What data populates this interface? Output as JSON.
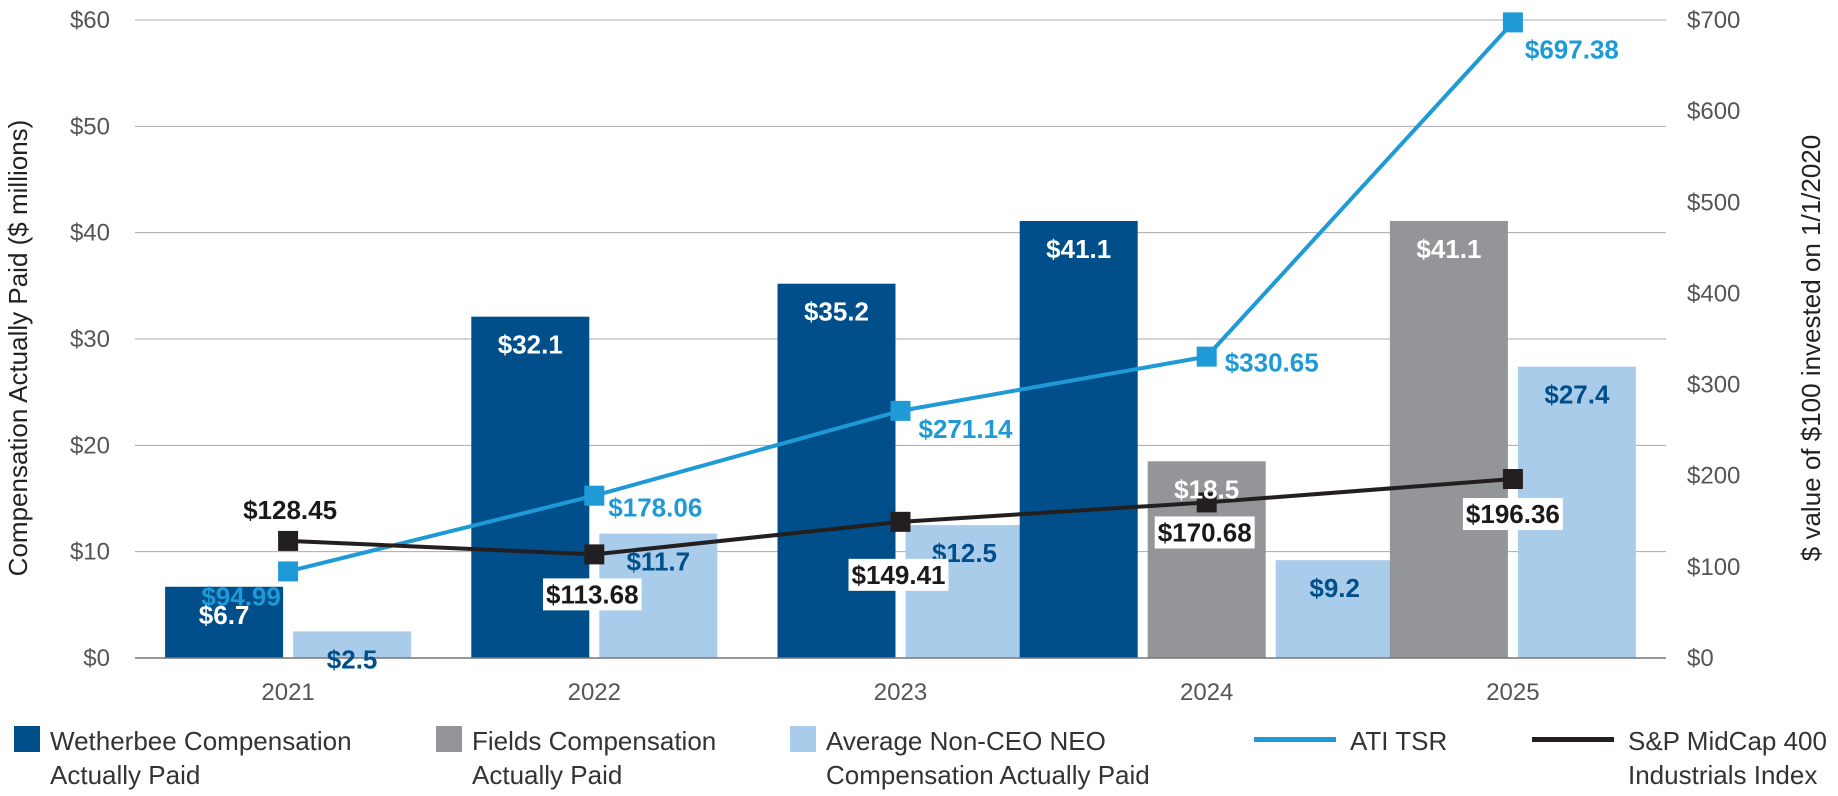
{
  "chart_data": {
    "type": "bar",
    "categories": [
      "2021",
      "2022",
      "2023",
      "2024",
      "2025"
    ],
    "left_axis": {
      "title": "Compensation Actually Paid ($ millions)",
      "range": [
        0,
        60
      ],
      "ticks": [
        0,
        10,
        20,
        30,
        40,
        50,
        60
      ],
      "tick_labels": [
        "$0",
        "$10",
        "$20",
        "$30",
        "$40",
        "$50",
        "$60"
      ]
    },
    "right_axis": {
      "title": "$ value of $100 invested on 1/1/2020",
      "range": [
        0,
        700
      ],
      "ticks": [
        0,
        100,
        200,
        300,
        400,
        500,
        600,
        700
      ],
      "tick_labels": [
        "$0",
        "$100",
        "$200",
        "$300",
        "$400",
        "$500",
        "$600",
        "$700"
      ]
    },
    "grid": true,
    "legend_position": "bottom",
    "series": [
      {
        "name": "Wetherbee Compensation Actually Paid",
        "kind": "bar",
        "axis": "left",
        "color": "#004F8B",
        "values": [
          6.7,
          32.1,
          35.2,
          41.1,
          null
        ],
        "labels": [
          "$6.7",
          "$32.1",
          "$35.2",
          "$41.1",
          null
        ]
      },
      {
        "name": "Fields Compensation Actually Paid",
        "kind": "bar",
        "axis": "left",
        "color": "#939598",
        "values": [
          null,
          null,
          null,
          18.5,
          41.1
        ],
        "labels": [
          null,
          null,
          null,
          "$18.5",
          "$41.1"
        ]
      },
      {
        "name": "Average Non-CEO NEO Compensation Actually Paid",
        "kind": "bar",
        "axis": "left",
        "color": "#A9CCEA",
        "values": [
          2.5,
          11.7,
          12.5,
          9.2,
          27.4
        ],
        "labels": [
          "$2.5",
          "$11.7",
          "$12.5",
          "$9.2",
          "$27.4"
        ]
      },
      {
        "name": "ATI TSR",
        "kind": "line",
        "axis": "right",
        "color": "#1E9AD6",
        "values": [
          94.99,
          178.06,
          271.14,
          330.65,
          697.38
        ],
        "labels": [
          "$94.99",
          "$178.06",
          "$271.14",
          "$330.65",
          "$697.38"
        ]
      },
      {
        "name": "S&P MidCap 400 Industrials Index",
        "kind": "line",
        "axis": "right",
        "color": "#231F20",
        "values": [
          128.45,
          113.68,
          149.41,
          170.68,
          196.36
        ],
        "labels": [
          "$128.45",
          "$113.68",
          "$149.41",
          "$170.68",
          "$196.36"
        ]
      }
    ]
  },
  "legend": {
    "wetherbee": {
      "line1": "Wetherbee Compensation",
      "line2": "Actually Paid",
      "color": "#004F8B"
    },
    "fields": {
      "line1": "Fields Compensation",
      "line2": "Actually Paid",
      "color": "#939598"
    },
    "neo": {
      "line1": "Average Non-CEO NEO",
      "line2": "Compensation Actually Paid",
      "color": "#A9CCEA"
    },
    "ati": {
      "line1": "ATI TSR",
      "color": "#1E9AD6"
    },
    "sp": {
      "line1": "S&P MidCap 400",
      "line2": "Industrials Index",
      "color": "#231F20"
    }
  }
}
